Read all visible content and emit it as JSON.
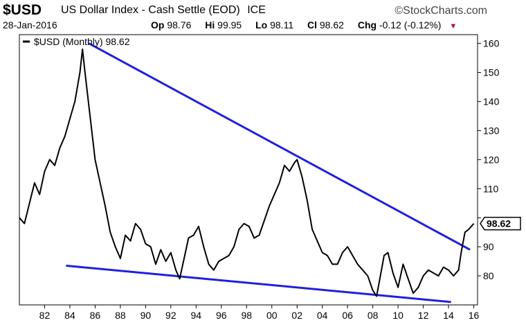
{
  "header": {
    "symbol": "$USD",
    "title": "US Dollar Index - Cash Settle (EOD)",
    "exchange": "ICE",
    "brand": "©StockCharts.com",
    "date": "28-Jan-2016",
    "open_label": "Op",
    "open": "98.76",
    "high_label": "Hi",
    "high": "99.95",
    "low_label": "Lo",
    "low": "98.11",
    "close_label": "Cl",
    "close": "98.62",
    "change_label": "Chg",
    "change": "-0.12 (-0.12%)"
  },
  "chart_data": {
    "type": "line",
    "legend": "$USD (Monthly) 98.62",
    "legend_position": "top-left",
    "last_value_label": "98.62",
    "xlim": [
      1980,
      2016.3
    ],
    "ylim": [
      70,
      163
    ],
    "x_ticks": [
      1982,
      1984,
      1986,
      1988,
      1990,
      1992,
      1994,
      1996,
      1998,
      2000,
      2002,
      2004,
      2006,
      2008,
      2010,
      2012,
      2014,
      2016
    ],
    "x_tick_labels": [
      "82",
      "84",
      "86",
      "88",
      "90",
      "92",
      "94",
      "96",
      "98",
      "00",
      "02",
      "04",
      "06",
      "08",
      "10",
      "12",
      "14",
      "16"
    ],
    "y_ticks": [
      80,
      90,
      100,
      110,
      120,
      130,
      140,
      150,
      160
    ],
    "y_tick_labels": [
      "80",
      "90",
      "",
      "110",
      "120",
      "130",
      "140",
      "150",
      "160"
    ],
    "series": [
      {
        "color": "#000000",
        "x": [
          1980.0,
          1980.4,
          1980.8,
          1981.2,
          1981.6,
          1982.0,
          1982.4,
          1982.8,
          1983.2,
          1983.6,
          1984.0,
          1984.4,
          1984.8,
          1985.0,
          1985.2,
          1985.6,
          1986.0,
          1986.4,
          1986.8,
          1987.2,
          1987.6,
          1988.0,
          1988.4,
          1988.8,
          1989.2,
          1989.6,
          1990.0,
          1990.4,
          1990.8,
          1991.2,
          1991.6,
          1992.0,
          1992.4,
          1992.7,
          1993.0,
          1993.4,
          1993.8,
          1994.2,
          1994.6,
          1995.0,
          1995.4,
          1995.8,
          1996.2,
          1996.6,
          1997.0,
          1997.4,
          1997.8,
          1998.2,
          1998.6,
          1999.0,
          1999.4,
          1999.8,
          2000.2,
          2000.6,
          2001.0,
          2001.4,
          2001.8,
          2002.0,
          2002.4,
          2002.8,
          2003.2,
          2003.6,
          2004.0,
          2004.4,
          2004.8,
          2005.2,
          2005.6,
          2006.0,
          2006.4,
          2006.8,
          2007.2,
          2007.6,
          2008.0,
          2008.3,
          2008.6,
          2008.9,
          2009.2,
          2009.6,
          2010.0,
          2010.4,
          2010.8,
          2011.2,
          2011.6,
          2012.0,
          2012.4,
          2012.8,
          2013.2,
          2013.6,
          2014.0,
          2014.4,
          2014.8,
          2015.0,
          2015.3,
          2015.6,
          2016.0
        ],
        "y": [
          100,
          98,
          105,
          112,
          108,
          116,
          120,
          118,
          124,
          128,
          134,
          140,
          150,
          158,
          150,
          135,
          120,
          112,
          104,
          95,
          90,
          86,
          94,
          92,
          98,
          96,
          91,
          90,
          84,
          89,
          85,
          88,
          82,
          79,
          85,
          93,
          94,
          97,
          90,
          84,
          82,
          85,
          86,
          87,
          90,
          96,
          98,
          97,
          93,
          94,
          99,
          104,
          108,
          112,
          118,
          116,
          119,
          120,
          114,
          106,
          96,
          92,
          88,
          87,
          84,
          84,
          88,
          90,
          87,
          84,
          82,
          80,
          75,
          73,
          80,
          87,
          88,
          81,
          76,
          84,
          79,
          74,
          76,
          80,
          82,
          81,
          80,
          83,
          82,
          80,
          82,
          88,
          95,
          96,
          98
        ]
      }
    ],
    "trendlines": [
      {
        "color": "#1f1fe0",
        "from": [
          1985.5,
          160
        ],
        "to": [
          2015.7,
          89
        ]
      },
      {
        "color": "#1f1fe0",
        "from": [
          1983.7,
          83.5
        ],
        "to": [
          2014.2,
          71
        ]
      }
    ]
  }
}
